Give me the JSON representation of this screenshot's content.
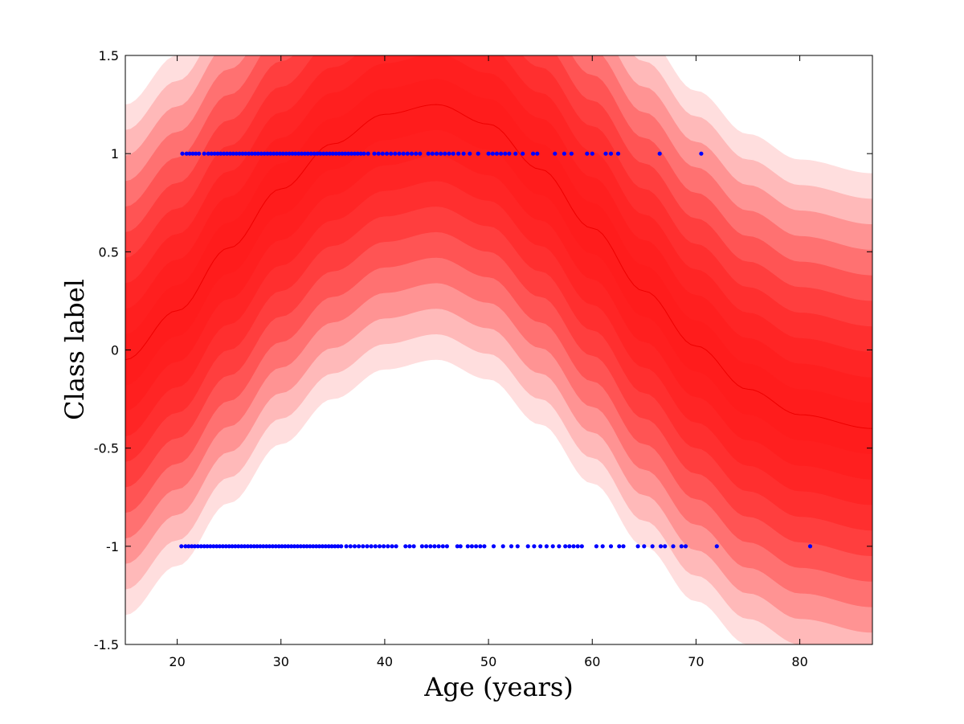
{
  "chart_data": {
    "type": "scatter",
    "title": "",
    "xlabel": "Age (years)",
    "ylabel": "Class label",
    "xlim": [
      15,
      87
    ],
    "ylim": [
      -1.5,
      1.5
    ],
    "xticks": [
      20,
      30,
      40,
      50,
      60,
      70,
      80
    ],
    "yticks": [
      -1.5,
      -1,
      -0.5,
      0,
      0.5,
      1,
      1.5
    ],
    "xtick_labels": [
      "20",
      "30",
      "40",
      "50",
      "60",
      "70",
      "80"
    ],
    "ytick_labels": [
      "-1.5",
      "-1",
      "-0.5",
      "0",
      "0.5",
      "1",
      "1.5"
    ],
    "grid": false,
    "colors": {
      "band": "#ff1a1a",
      "points": "#0000ff",
      "mean": "#ee0000"
    },
    "band": {
      "description_free_mean_x": [
        15,
        20,
        25,
        30,
        35,
        40,
        45,
        50,
        55,
        60,
        65,
        70,
        75,
        80,
        87
      ],
      "mean_y": [
        -0.05,
        0.2,
        0.52,
        0.82,
        1.05,
        1.2,
        1.25,
        1.15,
        0.92,
        0.62,
        0.3,
        0.02,
        -0.2,
        -0.33,
        -0.4
      ],
      "half_width_levels": [
        0.13,
        0.26,
        0.39,
        0.52,
        0.65,
        0.78,
        0.91,
        1.04,
        1.17,
        1.3
      ],
      "opacities": [
        0.12,
        0.2,
        0.28,
        0.36,
        0.44,
        0.52,
        0.6,
        0.68,
        0.76,
        0.84
      ]
    },
    "series": [
      {
        "y": 1,
        "x": [
          20.5,
          20.9,
          21.2,
          21.5,
          21.8,
          22.1,
          22.6,
          23.0,
          23.3,
          23.6,
          23.9,
          24.2,
          24.5,
          24.8,
          25.1,
          25.4,
          25.7,
          26.0,
          26.3,
          26.6,
          26.9,
          27.2,
          27.5,
          27.8,
          28.1,
          28.4,
          28.7,
          29.0,
          29.3,
          29.6,
          29.9,
          30.2,
          30.5,
          30.8,
          31.1,
          31.4,
          31.7,
          32.0,
          32.3,
          32.6,
          32.9,
          33.2,
          33.5,
          33.8,
          34.1,
          34.4,
          34.7,
          35.0,
          35.3,
          35.6,
          35.9,
          36.2,
          36.5,
          36.8,
          37.1,
          37.4,
          37.7,
          38.0,
          38.4,
          39.0,
          39.4,
          39.8,
          40.2,
          40.6,
          41.0,
          41.4,
          41.8,
          42.2,
          42.6,
          43.0,
          43.4,
          44.2,
          44.6,
          45.0,
          45.4,
          45.8,
          46.2,
          46.6,
          47.1,
          47.6,
          48.2,
          49.0,
          50.0,
          50.4,
          50.8,
          51.2,
          51.6,
          52.0,
          52.6,
          53.3,
          54.3,
          54.7,
          56.4,
          57.3,
          58.0,
          59.5,
          60.0,
          61.3,
          61.8,
          62.5,
          66.5,
          70.5
        ]
      },
      {
        "y": -1,
        "x": [
          20.4,
          20.8,
          21.1,
          21.4,
          21.7,
          22.0,
          22.3,
          22.6,
          22.9,
          23.2,
          23.5,
          23.8,
          24.1,
          24.4,
          24.7,
          25.0,
          25.3,
          25.6,
          25.9,
          26.2,
          26.5,
          26.8,
          27.1,
          27.4,
          27.7,
          28.0,
          28.3,
          28.6,
          28.9,
          29.2,
          29.5,
          29.8,
          30.1,
          30.4,
          30.7,
          31.0,
          31.3,
          31.6,
          31.9,
          32.2,
          32.5,
          32.8,
          33.1,
          33.4,
          33.7,
          34.0,
          34.3,
          34.6,
          34.9,
          35.2,
          35.5,
          35.8,
          36.3,
          36.7,
          37.1,
          37.5,
          37.9,
          38.3,
          38.7,
          39.1,
          39.5,
          39.9,
          40.3,
          40.7,
          41.1,
          42.0,
          42.4,
          42.8,
          43.6,
          44.0,
          44.4,
          44.8,
          45.2,
          45.6,
          46.0,
          47.0,
          47.3,
          48.0,
          48.4,
          48.8,
          49.2,
          49.6,
          50.5,
          51.4,
          52.2,
          52.8,
          53.8,
          54.4,
          55.0,
          55.6,
          56.2,
          56.8,
          57.4,
          57.8,
          58.2,
          58.6,
          59.0,
          60.4,
          61.0,
          61.8,
          62.6,
          63.0,
          64.4,
          65.0,
          65.8,
          66.6,
          67.0,
          67.8,
          68.6,
          69.0,
          72.0,
          81.0
        ]
      }
    ]
  }
}
